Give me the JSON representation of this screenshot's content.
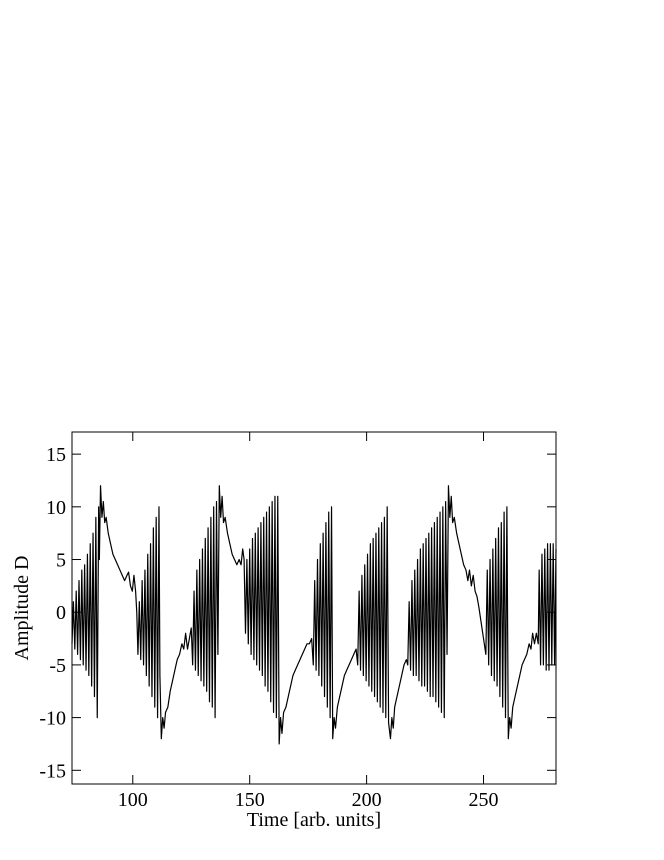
{
  "chart_data": {
    "type": "line",
    "x_label": "Time [arb. units]",
    "y_label": "Amplitude D",
    "color": "#000000",
    "xlim": [
      74,
      281
    ],
    "ylim": [
      -16.3,
      17.1
    ],
    "xticks": [
      100,
      150,
      200,
      250
    ],
    "yticks": [
      -15,
      -10,
      -5,
      0,
      5,
      10,
      15
    ],
    "x": [
      74,
      74.6,
      75.2,
      75.8,
      76.4,
      77,
      77.6,
      78.2,
      78.8,
      79.4,
      80,
      80.6,
      81.2,
      81.8,
      82.4,
      83,
      83.6,
      84.2,
      84.8,
      85.4,
      85.7,
      86.2,
      86.8,
      87.4,
      88,
      88.6,
      89.5,
      90.5,
      91.5,
      92.5,
      93.5,
      94.5,
      95.5,
      96.5,
      97.5,
      98.2,
      99,
      99.8,
      100.5,
      101.2,
      101.7,
      102.2,
      102.8,
      103.4,
      104,
      104.6,
      105.2,
      105.8,
      106.4,
      107,
      107.6,
      108.2,
      108.8,
      109.4,
      110,
      110.6,
      111.2,
      111.6,
      112.2,
      112.8,
      113.4,
      114,
      115,
      116,
      117,
      118,
      119,
      120,
      121,
      121.8,
      122.6,
      123.4,
      124.2,
      125,
      125.6,
      126.2,
      126.8,
      127.4,
      128,
      128.6,
      129.2,
      129.8,
      130.4,
      131,
      131.6,
      132.2,
      132.8,
      133.4,
      134,
      134.6,
      135.2,
      135.8,
      136.4,
      137,
      137.6,
      138.2,
      138.8,
      139.5,
      140.5,
      141.5,
      142.5,
      143.5,
      144.5,
      145.5,
      146.3,
      147,
      147.6,
      148.2,
      148.8,
      149.4,
      150,
      150.6,
      151.2,
      151.8,
      152.4,
      153,
      153.6,
      154.2,
      154.8,
      155.4,
      156,
      156.6,
      157.2,
      157.8,
      158.4,
      159,
      159.6,
      160.2,
      160.8,
      161.4,
      162,
      162.6,
      163.2,
      163.8,
      164.5,
      165.5,
      166.5,
      167.5,
      168.5,
      169.5,
      170.5,
      171.5,
      172.5,
      173.5,
      174.5,
      175.5,
      176.5,
      177.2,
      177.8,
      178.4,
      179,
      179.6,
      180.2,
      180.8,
      181.4,
      182,
      182.6,
      183.2,
      183.8,
      184.4,
      185,
      185.5,
      186.1,
      186.7,
      187.5,
      188.5,
      189.5,
      190.5,
      191.5,
      192.5,
      193.5,
      194.5,
      195.5,
      196.2,
      196.8,
      197.4,
      198,
      198.6,
      199.2,
      199.8,
      200.4,
      201,
      201.6,
      202.2,
      202.8,
      203.4,
      204,
      204.6,
      205.2,
      205.8,
      206.4,
      207,
      207.6,
      208.2,
      208.8,
      209.4,
      210.2,
      210.8,
      211.4,
      212,
      213,
      214,
      215,
      216,
      217,
      217.6,
      218.2,
      218.8,
      219.4,
      220,
      220.6,
      221.2,
      221.8,
      222.4,
      223,
      223.6,
      224.2,
      224.8,
      225.4,
      226,
      226.6,
      227.2,
      227.8,
      228.4,
      229,
      229.6,
      230.2,
      230.8,
      231.4,
      232,
      232.6,
      233.2,
      233.8,
      234.4,
      235,
      235.6,
      236.2,
      236.8,
      237.5,
      238.5,
      239.5,
      240.5,
      241.5,
      242.5,
      243.3,
      244,
      244.8,
      245.6,
      246.4,
      247.2,
      248,
      249,
      250,
      251,
      251.6,
      252.2,
      252.8,
      253.4,
      254,
      254.6,
      255.2,
      255.8,
      256.4,
      257,
      257.6,
      258.2,
      258.8,
      259.4,
      260,
      260.6,
      261.2,
      261.8,
      262.5,
      263.5,
      264.5,
      265.5,
      266.5,
      267.5,
      268.5,
      269.5,
      270.3,
      271,
      271.8,
      272.6,
      273.4,
      273.8,
      274.4,
      275,
      275.6,
      276.2,
      276.8,
      277.4,
      278,
      278.6,
      279.2,
      279.8,
      280.4,
      281
    ],
    "values": [
      -3,
      1,
      -3.5,
      2,
      -4,
      3,
      -4.5,
      4,
      -5,
      4.5,
      -5.5,
      5.5,
      -6,
      6.5,
      -7,
      7.5,
      -8,
      9,
      -10,
      10,
      5,
      12,
      9,
      10.5,
      8.5,
      9,
      7.5,
      6.5,
      5.5,
      5,
      4.5,
      4,
      3.5,
      3,
      3.5,
      3.8,
      2.5,
      2,
      3.5,
      2,
      0,
      -4,
      1,
      -4.5,
      3,
      -5,
      4,
      -6,
      5.5,
      -7,
      6.5,
      -8,
      8,
      -9,
      9,
      -10,
      10,
      -6,
      -12,
      -10,
      -11,
      -9.5,
      -9,
      -7.5,
      -6.5,
      -5.5,
      -4.5,
      -4,
      -3,
      -3.5,
      -2,
      -3.5,
      -2.5,
      -1.5,
      -5,
      2,
      -5.5,
      4,
      -6,
      5,
      -6.5,
      6,
      -7,
      7,
      -7.5,
      8,
      -8.5,
      9,
      -9,
      10,
      -10,
      10.5,
      -4,
      12,
      9,
      11,
      8.5,
      9,
      7.5,
      6.5,
      5.5,
      5,
      4.5,
      5,
      4.5,
      6,
      5,
      -2,
      5,
      -3,
      6,
      -4,
      7,
      -4.5,
      7.5,
      -5,
      8,
      -5.5,
      8.5,
      -6,
      9,
      -7,
      9.5,
      -7.5,
      10,
      -8.5,
      10.5,
      -9.5,
      11,
      -10,
      11,
      -12.5,
      -10,
      -11.5,
      -9.5,
      -9,
      -8,
      -7,
      -6,
      -5.5,
      -5,
      -4.5,
      -4,
      -3.5,
      -3,
      -3,
      -2.5,
      -5,
      3,
      -5.5,
      5,
      -6,
      6.5,
      -7,
      7.5,
      -8,
      8.5,
      -9,
      9.5,
      -10,
      10,
      -12,
      -10,
      -11,
      -9,
      -8,
      -7,
      -6,
      -5.5,
      -5,
      -4.5,
      -4,
      -3.5,
      -5,
      2,
      -5.5,
      3.5,
      -6,
      4.5,
      -6.5,
      5.5,
      -7,
      6.5,
      -7.5,
      7,
      -8,
      7.5,
      -8.5,
      8,
      -9,
      8.5,
      -9.5,
      9,
      -10,
      10,
      -10.5,
      -12,
      -10,
      -11,
      -9,
      -8,
      -7,
      -6,
      -5,
      -4.5,
      -5,
      1,
      -5.5,
      3,
      -6,
      4,
      -6,
      5,
      -6.5,
      6,
      -7,
      6.5,
      -7,
      7,
      -7.5,
      7.5,
      -8,
      8,
      -8,
      8.5,
      -8.5,
      9,
      -9,
      9.5,
      -9.5,
      10,
      -10,
      10.5,
      -4,
      12,
      9,
      11,
      8.5,
      9,
      7.5,
      6.5,
      5.5,
      4.5,
      4,
      3,
      4,
      2.5,
      3.5,
      2,
      1.5,
      0.5,
      -1,
      -2.5,
      -4,
      4,
      -5,
      5,
      -6,
      6,
      -6.5,
      7,
      -7,
      8,
      -8,
      8.5,
      -9,
      9.5,
      -10,
      10,
      -12,
      -10,
      -11,
      -9,
      -8,
      -7,
      -6,
      -5,
      -4.5,
      -4,
      -3,
      -3.5,
      -2,
      -3,
      -2,
      -3,
      4,
      -5,
      5.5,
      -5,
      6,
      -5.5,
      6.5,
      -5.5,
      6.5,
      -5,
      6.5,
      -5,
      6
    ]
  }
}
